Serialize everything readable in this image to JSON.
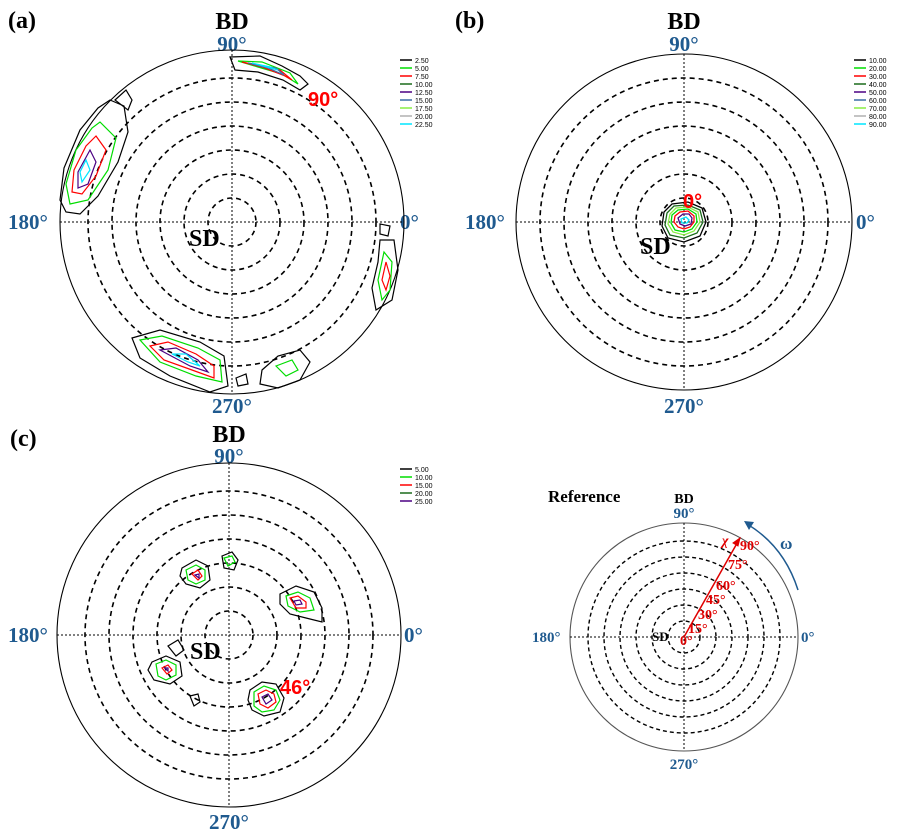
{
  "panels": [
    {
      "id": "a",
      "letter": "(a)",
      "bd": "BD",
      "angles": {
        "top": "90°",
        "left": "180°",
        "right": "0°",
        "bottom": "270°"
      },
      "sd": "SD",
      "annotation": "90°",
      "legend": [
        "2.50",
        "5.00",
        "7.50",
        "10.00",
        "12.50",
        "15.00",
        "17.50",
        "20.00",
        "22.50"
      ]
    },
    {
      "id": "b",
      "letter": "(b)",
      "bd": "BD",
      "angles": {
        "top": "90°",
        "left": "180°",
        "right": "0°",
        "bottom": "270°"
      },
      "sd": "SD",
      "annotation": "0°",
      "legend": [
        "10.00",
        "20.00",
        "30.00",
        "40.00",
        "50.00",
        "60.00",
        "70.00",
        "80.00",
        "90.00"
      ]
    },
    {
      "id": "c",
      "letter": "(c)",
      "bd": "BD",
      "angles": {
        "top": "90°",
        "left": "180°",
        "right": "0°",
        "bottom": "270°"
      },
      "sd": "SD",
      "annotation": "46°",
      "legend": [
        "5.00",
        "10.00",
        "15.00",
        "20.00",
        "25.00"
      ]
    }
  ],
  "reference": {
    "title": "Reference",
    "bd": "BD",
    "angles": {
      "top": "90°",
      "left": "180°",
      "right": "0°",
      "bottom": "270°"
    },
    "sd": "SD",
    "chi": "χ",
    "omega": "ω",
    "tilt_labels": [
      "0°",
      "15°",
      "30°",
      "45°",
      "60°",
      "75°",
      "90°"
    ]
  },
  "legend_colors_ab": [
    "#000000",
    "#00dd00",
    "#ff0000",
    "#1a6b1a",
    "#4b0082",
    "#3a6ea5",
    "#88ee44",
    "#b0b0b0",
    "#00e5ff"
  ],
  "legend_colors_c": [
    "#000000",
    "#00dd00",
    "#ff0000",
    "#1a6b1a",
    "#4b0082"
  ],
  "axis_label_color": "#1f5a8f",
  "annotation_color": "#ff0000"
}
